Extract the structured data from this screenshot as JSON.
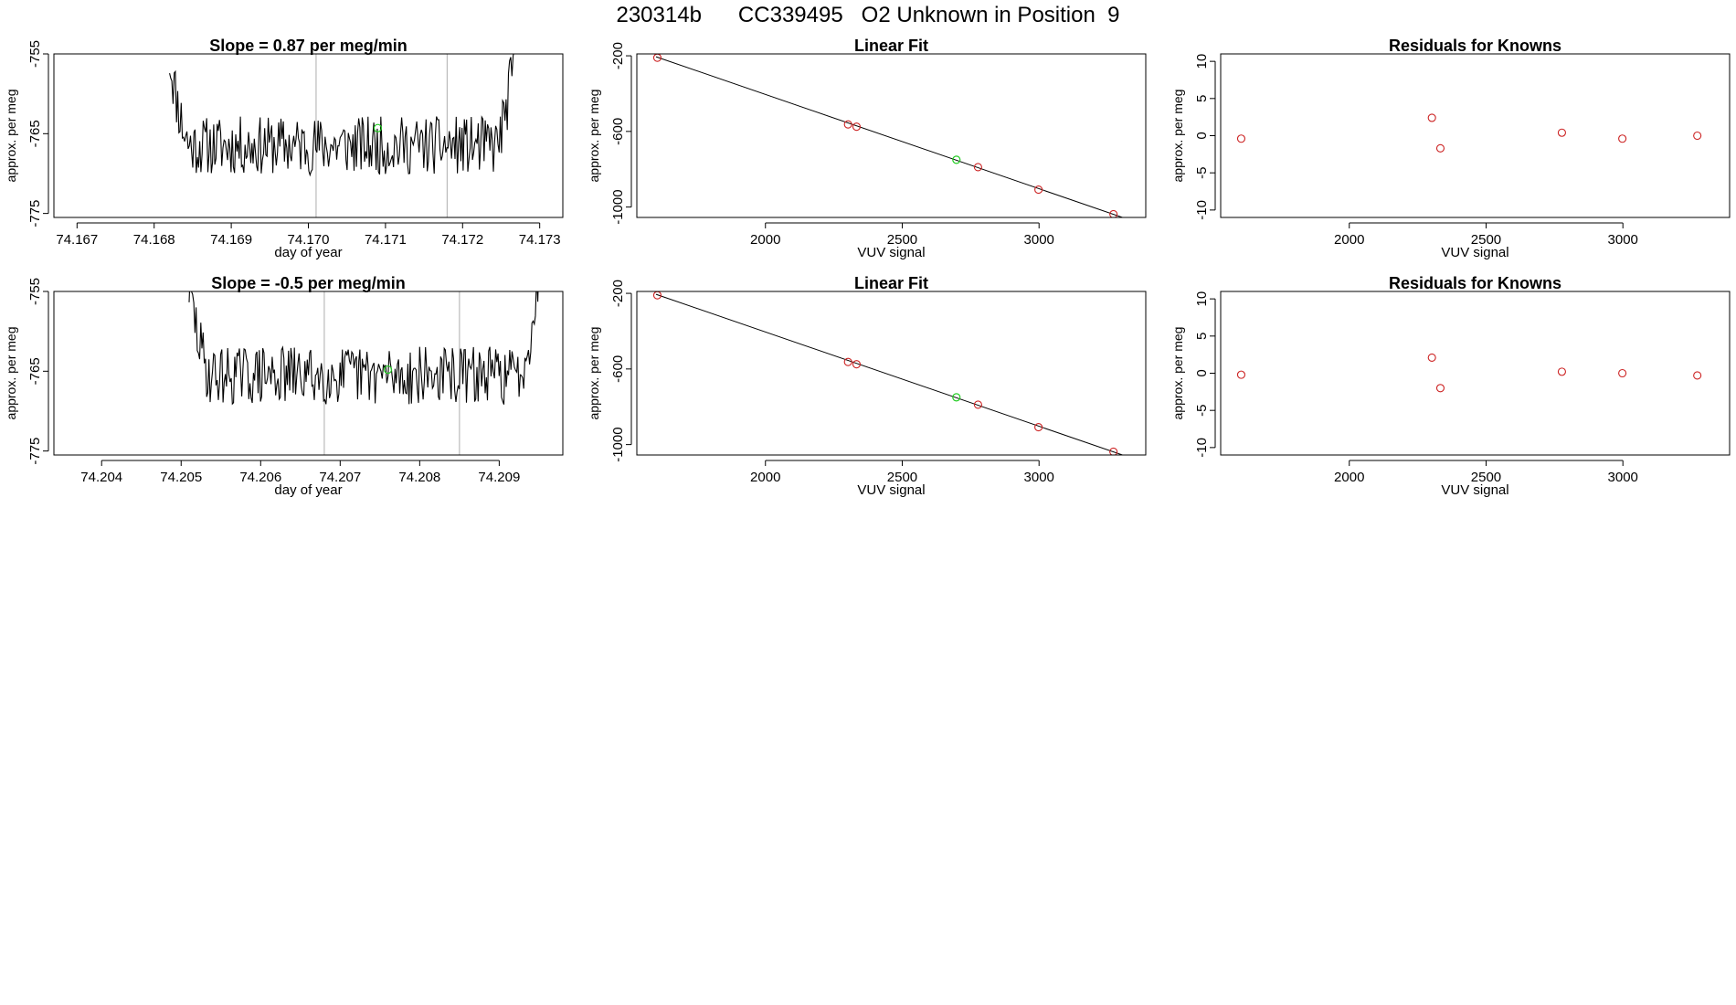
{
  "page": {
    "title": "230314b      CC339495   O2 Unknown in Position  9"
  },
  "colors": {
    "trace": "#000000",
    "known_point": "#cc2222",
    "unknown_point": "#22cc22",
    "window_line": "#bbbbbb",
    "axis": "#000000"
  },
  "chart_data": [
    {
      "id": "trace-1",
      "type": "line",
      "title": "Slope =  0.87  per meg/min",
      "xlabel": "day of year",
      "ylabel": "approx. per meg",
      "xlim": [
        74.1667,
        74.1733
      ],
      "ylim": [
        -775.5,
        -755
      ],
      "x_ticks": [
        {
          "value": 74.167,
          "label": "74.167"
        },
        {
          "value": 74.168,
          "label": "74.168"
        },
        {
          "value": 74.169,
          "label": "74.169"
        },
        {
          "value": 74.17,
          "label": "74.170"
        },
        {
          "value": 74.171,
          "label": "74.171"
        },
        {
          "value": 74.172,
          "label": "74.172"
        },
        {
          "value": 74.173,
          "label": "74.173"
        }
      ],
      "y_ticks": [
        {
          "value": -755,
          "label": "-755"
        },
        {
          "value": -765,
          "label": "-765"
        },
        {
          "value": -775,
          "label": "-775"
        }
      ],
      "window_lines": [
        74.1701,
        74.1718
      ],
      "unknown_mean": {
        "x": 74.1709,
        "y": -764.3
      },
      "trace": {
        "x_start": 74.1682,
        "x_end": 74.1727,
        "n": 300,
        "base": -766.5,
        "noise": 2.3,
        "rise_left": 11,
        "rise_right": 13,
        "seed": 11
      }
    },
    {
      "id": "fit-1",
      "type": "scatter",
      "title": "Linear Fit",
      "xlabel": "VUV signal",
      "ylabel": "approx. per meg",
      "xlim": [
        1530,
        3390
      ],
      "ylim": [
        -1055,
        -190
      ],
      "x_ticks": [
        {
          "value": 2000,
          "label": "2000"
        },
        {
          "value": 2500,
          "label": "2500"
        },
        {
          "value": 3000,
          "label": "3000"
        }
      ],
      "y_ticks": [
        {
          "value": -200,
          "label": "-200"
        },
        {
          "value": -600,
          "label": "-600"
        },
        {
          "value": -1000,
          "label": "-1000"
        }
      ],
      "fit_line": {
        "x": [
          1600,
          3325
        ],
        "y": [
          -205,
          -1065
        ]
      },
      "points": [
        {
          "x": 1605,
          "y": -210
        },
        {
          "x": 2302,
          "y": -563
        },
        {
          "x": 2333,
          "y": -575
        },
        {
          "x": 2777,
          "y": -789
        },
        {
          "x": 2998,
          "y": -908
        },
        {
          "x": 3272,
          "y": -1038
        }
      ],
      "unknown_point": {
        "x": 2698,
        "y": -750
      }
    },
    {
      "id": "resid-1",
      "type": "scatter",
      "title": "Residuals for Knowns",
      "xlabel": "VUV signal",
      "ylabel": "approx. per meg",
      "xlim": [
        1530,
        3390
      ],
      "ylim": [
        -11,
        11
      ],
      "x_ticks": [
        {
          "value": 2000,
          "label": "2000"
        },
        {
          "value": 2500,
          "label": "2500"
        },
        {
          "value": 3000,
          "label": "3000"
        }
      ],
      "y_ticks": [
        {
          "value": 10,
          "label": "10"
        },
        {
          "value": 5,
          "label": "5"
        },
        {
          "value": 0,
          "label": "0"
        },
        {
          "value": -5,
          "label": "-5"
        },
        {
          "value": -10,
          "label": "-10"
        }
      ],
      "points": [
        {
          "x": 1605,
          "y": -0.4
        },
        {
          "x": 2302,
          "y": 2.4
        },
        {
          "x": 2333,
          "y": -1.7
        },
        {
          "x": 2777,
          "y": 0.4
        },
        {
          "x": 2998,
          "y": -0.4
        },
        {
          "x": 3272,
          "y": 0.0
        }
      ]
    },
    {
      "id": "trace-2",
      "type": "line",
      "title": "Slope =  -0.5  per meg/min",
      "xlabel": "day of year",
      "ylabel": "approx. per meg",
      "xlim": [
        74.2034,
        74.2098
      ],
      "ylim": [
        -775.5,
        -755
      ],
      "x_ticks": [
        {
          "value": 74.204,
          "label": "74.204"
        },
        {
          "value": 74.205,
          "label": "74.205"
        },
        {
          "value": 74.206,
          "label": "74.206"
        },
        {
          "value": 74.207,
          "label": "74.207"
        },
        {
          "value": 74.208,
          "label": "74.208"
        },
        {
          "value": 74.209,
          "label": "74.209"
        }
      ],
      "y_ticks": [
        {
          "value": -755,
          "label": "-755"
        },
        {
          "value": -765,
          "label": "-765"
        },
        {
          "value": -775,
          "label": "-775"
        }
      ],
      "window_lines": [
        74.2068,
        74.2085
      ],
      "unknown_mean": {
        "x": 74.2076,
        "y": -764.8
      },
      "trace": {
        "x_start": 74.2051,
        "x_end": 74.2095,
        "n": 300,
        "base": -765.5,
        "noise": 2.3,
        "rise_left": 11,
        "rise_right": 12,
        "seed": 29
      }
    },
    {
      "id": "fit-2",
      "type": "scatter",
      "title": "Linear Fit",
      "xlabel": "VUV signal",
      "ylabel": "approx. per meg",
      "xlim": [
        1530,
        3390
      ],
      "ylim": [
        -1055,
        -190
      ],
      "x_ticks": [
        {
          "value": 2000,
          "label": "2000"
        },
        {
          "value": 2500,
          "label": "2500"
        },
        {
          "value": 3000,
          "label": "3000"
        }
      ],
      "y_ticks": [
        {
          "value": -200,
          "label": "-200"
        },
        {
          "value": -600,
          "label": "-600"
        },
        {
          "value": -1000,
          "label": "-1000"
        }
      ],
      "fit_line": {
        "x": [
          1600,
          3325
        ],
        "y": [
          -205,
          -1065
        ]
      },
      "points": [
        {
          "x": 1605,
          "y": -210
        },
        {
          "x": 2302,
          "y": -563
        },
        {
          "x": 2333,
          "y": -575
        },
        {
          "x": 2777,
          "y": -789
        },
        {
          "x": 2998,
          "y": -908
        },
        {
          "x": 3272,
          "y": -1038
        }
      ],
      "unknown_point": {
        "x": 2698,
        "y": -750
      }
    },
    {
      "id": "resid-2",
      "type": "scatter",
      "title": "Residuals for Knowns",
      "xlabel": "VUV signal",
      "ylabel": "approx. per meg",
      "xlim": [
        1530,
        3390
      ],
      "ylim": [
        -11,
        11
      ],
      "x_ticks": [
        {
          "value": 2000,
          "label": "2000"
        },
        {
          "value": 2500,
          "label": "2500"
        },
        {
          "value": 3000,
          "label": "3000"
        }
      ],
      "y_ticks": [
        {
          "value": 10,
          "label": "10"
        },
        {
          "value": 5,
          "label": "5"
        },
        {
          "value": 0,
          "label": "0"
        },
        {
          "value": -5,
          "label": "-5"
        },
        {
          "value": -10,
          "label": "-10"
        }
      ],
      "points": [
        {
          "x": 1605,
          "y": -0.2
        },
        {
          "x": 2302,
          "y": 2.1
        },
        {
          "x": 2333,
          "y": -2.0
        },
        {
          "x": 2777,
          "y": 0.2
        },
        {
          "x": 2998,
          "y": 0.0
        },
        {
          "x": 3272,
          "y": -0.3
        }
      ]
    }
  ]
}
